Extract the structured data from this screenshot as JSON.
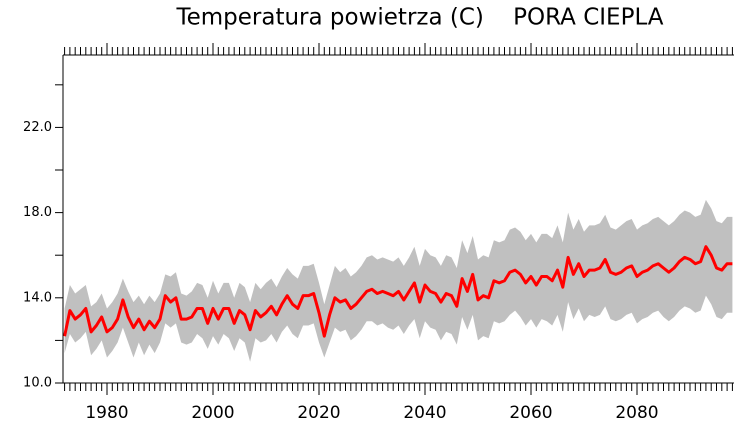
{
  "chart_data": {
    "type": "line",
    "title": "Temperatura powietrza (C)    PORA CIEPLA",
    "x": [
      1972,
      1973,
      1974,
      1975,
      1976,
      1977,
      1978,
      1979,
      1980,
      1981,
      1982,
      1983,
      1984,
      1985,
      1986,
      1987,
      1988,
      1989,
      1990,
      1991,
      1992,
      1993,
      1994,
      1995,
      1996,
      1997,
      1998,
      1999,
      2000,
      2001,
      2002,
      2003,
      2004,
      2005,
      2006,
      2007,
      2008,
      2009,
      2010,
      2011,
      2012,
      2013,
      2014,
      2015,
      2016,
      2017,
      2018,
      2019,
      2020,
      2021,
      2022,
      2023,
      2024,
      2025,
      2026,
      2027,
      2028,
      2029,
      2030,
      2031,
      2032,
      2033,
      2034,
      2035,
      2036,
      2037,
      2038,
      2039,
      2040,
      2041,
      2042,
      2043,
      2044,
      2045,
      2046,
      2047,
      2048,
      2049,
      2050,
      2051,
      2052,
      2053,
      2054,
      2055,
      2056,
      2057,
      2058,
      2059,
      2060,
      2061,
      2062,
      2063,
      2064,
      2065,
      2066,
      2067,
      2068,
      2069,
      2070,
      2071,
      2072,
      2073,
      2074,
      2075,
      2076,
      2077,
      2078,
      2079,
      2080,
      2081,
      2082,
      2083,
      2084,
      2085,
      2086,
      2087,
      2088,
      2089,
      2090,
      2091,
      2092,
      2093,
      2094,
      2095,
      2096,
      2097,
      2098
    ],
    "series": [
      {
        "color": "#ff0000",
        "values": [
          12.2,
          13.4,
          13.0,
          13.2,
          13.5,
          12.4,
          12.7,
          13.1,
          12.4,
          12.6,
          13.0,
          13.9,
          13.1,
          12.6,
          13.0,
          12.5,
          12.9,
          12.6,
          13.0,
          14.1,
          13.8,
          14.0,
          13.0,
          13.0,
          13.1,
          13.5,
          13.5,
          12.8,
          13.5,
          13.0,
          13.5,
          13.5,
          12.8,
          13.4,
          13.2,
          12.5,
          13.4,
          13.1,
          13.3,
          13.6,
          13.2,
          13.7,
          14.1,
          13.7,
          13.5,
          14.1,
          14.1,
          14.2,
          13.3,
          12.2,
          13.2,
          14.0,
          13.8,
          13.9,
          13.5,
          13.7,
          14.0,
          14.3,
          14.4,
          14.2,
          14.3,
          14.2,
          14.1,
          14.3,
          13.9,
          14.3,
          14.7,
          13.8,
          14.6,
          14.3,
          14.2,
          13.8,
          14.2,
          14.1,
          13.6,
          14.9,
          14.3,
          15.1,
          13.9,
          14.1,
          14.0,
          14.8,
          14.7,
          14.8,
          15.2,
          15.3,
          15.1,
          14.7,
          15.0,
          14.6,
          15.0,
          15.0,
          14.8,
          15.3,
          14.5,
          15.9,
          15.1,
          15.6,
          15.0,
          15.3,
          15.3,
          15.4,
          15.8,
          15.2,
          15.1,
          15.2,
          15.4,
          15.5,
          15.0,
          15.2,
          15.3,
          15.5,
          15.6,
          15.4,
          15.2,
          15.4,
          15.7,
          15.9,
          15.8,
          15.6,
          15.7,
          16.4,
          16.0,
          15.4,
          15.3,
          15.6,
          15.6
        ]
      }
    ],
    "band": {
      "color": "#c0c0c0",
      "low": [
        11.4,
        12.3,
        11.9,
        12.1,
        12.4,
        11.3,
        11.6,
        12.0,
        11.2,
        11.5,
        11.9,
        12.6,
        11.9,
        11.2,
        11.9,
        11.3,
        11.8,
        11.4,
        11.9,
        12.8,
        12.6,
        12.8,
        11.9,
        11.8,
        11.9,
        12.3,
        12.1,
        11.6,
        12.2,
        11.8,
        12.3,
        12.1,
        11.5,
        12.1,
        11.9,
        11.0,
        12.1,
        11.9,
        12.0,
        12.3,
        11.9,
        12.4,
        12.7,
        12.3,
        12.1,
        12.7,
        12.7,
        12.8,
        11.9,
        11.2,
        11.9,
        12.6,
        12.4,
        12.5,
        12.0,
        12.2,
        12.5,
        12.9,
        12.9,
        12.7,
        12.8,
        12.6,
        12.5,
        12.7,
        12.3,
        12.7,
        13.0,
        12.1,
        12.9,
        12.6,
        12.5,
        12.0,
        12.4,
        12.3,
        11.8,
        13.1,
        12.5,
        13.2,
        12.0,
        12.2,
        12.1,
        12.9,
        12.8,
        12.9,
        13.2,
        13.4,
        13.1,
        12.7,
        13.0,
        12.6,
        13.0,
        12.9,
        12.7,
        13.2,
        12.4,
        13.8,
        13.0,
        13.5,
        12.9,
        13.2,
        13.1,
        13.2,
        13.6,
        13.0,
        12.9,
        13.0,
        13.2,
        13.3,
        12.8,
        13.0,
        13.1,
        13.3,
        13.4,
        13.1,
        12.9,
        13.1,
        13.4,
        13.6,
        13.5,
        13.3,
        13.4,
        14.1,
        13.7,
        13.1,
        13.0,
        13.3,
        13.3
      ],
      "high": [
        13.5,
        14.6,
        14.2,
        14.4,
        14.6,
        13.6,
        13.8,
        14.2,
        13.5,
        13.8,
        14.2,
        14.9,
        14.3,
        13.8,
        14.1,
        13.7,
        14.1,
        13.8,
        14.2,
        15.1,
        15.0,
        15.2,
        14.2,
        14.1,
        14.3,
        14.7,
        14.6,
        14.0,
        14.8,
        14.2,
        14.7,
        14.7,
        14.0,
        14.7,
        14.5,
        13.8,
        14.7,
        14.4,
        14.7,
        14.9,
        14.5,
        15.0,
        15.4,
        15.1,
        14.9,
        15.5,
        15.5,
        15.6,
        14.7,
        13.7,
        14.6,
        15.5,
        15.2,
        15.4,
        15.0,
        15.2,
        15.5,
        15.9,
        16.0,
        15.8,
        15.9,
        15.8,
        15.7,
        15.9,
        15.5,
        15.9,
        16.4,
        15.5,
        16.3,
        16.0,
        15.9,
        15.5,
        16.0,
        15.9,
        15.4,
        16.7,
        16.1,
        16.9,
        15.8,
        16.0,
        15.9,
        16.7,
        16.6,
        16.7,
        17.2,
        17.3,
        17.1,
        16.7,
        17.0,
        16.6,
        17.0,
        17.0,
        16.8,
        17.4,
        16.6,
        18.0,
        17.2,
        17.7,
        17.1,
        17.4,
        17.4,
        17.5,
        17.9,
        17.3,
        17.2,
        17.4,
        17.6,
        17.7,
        17.2,
        17.4,
        17.5,
        17.7,
        17.8,
        17.6,
        17.4,
        17.6,
        17.9,
        18.1,
        18.0,
        17.8,
        17.9,
        18.6,
        18.2,
        17.6,
        17.5,
        17.8,
        17.8
      ]
    },
    "xlim": [
      1971.7,
      2098.3
    ],
    "xticks": [
      1980,
      2000,
      2020,
      2040,
      2060,
      2080
    ],
    "ylim": [
      10,
      25.4
    ],
    "yticks": [
      {
        "value": 10,
        "label": "10.0"
      },
      {
        "value": 14,
        "label": "14.0"
      },
      {
        "value": 18,
        "label": "18.0"
      },
      {
        "value": 22,
        "label": "22.0"
      }
    ],
    "yminorticks": [
      12,
      16,
      20,
      24
    ]
  }
}
